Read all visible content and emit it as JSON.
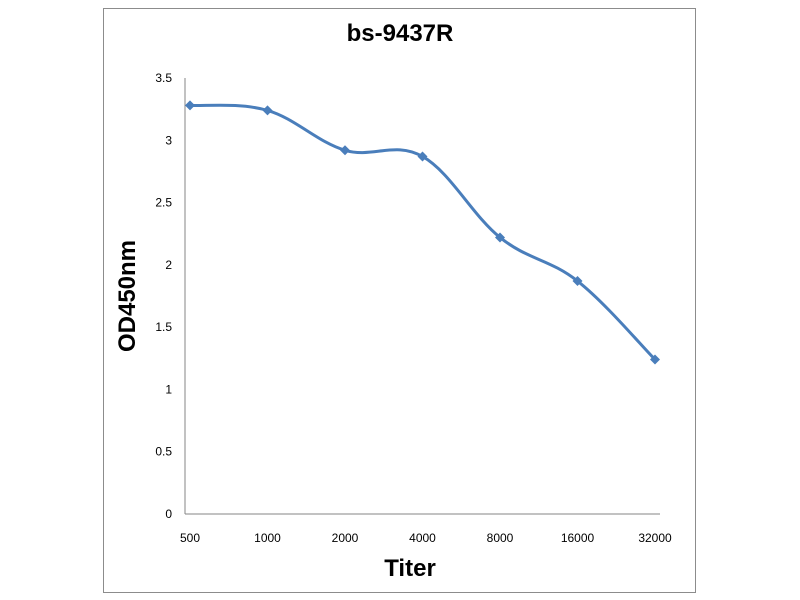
{
  "chart_data": {
    "type": "line",
    "title": "bs-9437R",
    "xlabel": "Titer",
    "ylabel": "OD450nm",
    "categories": [
      "500",
      "1000",
      "2000",
      "4000",
      "8000",
      "16000",
      "32000"
    ],
    "series": [
      {
        "values": [
          3.28,
          3.24,
          2.92,
          2.87,
          2.22,
          1.87,
          1.24
        ]
      }
    ],
    "yticks": [
      "0",
      "0.5",
      "1",
      "1.5",
      "2",
      "2.5",
      "3",
      "3.5"
    ],
    "ylim": [
      0,
      3.5
    ],
    "grid": false,
    "legend": "none",
    "colors": {
      "line": "#4a7ebb",
      "axis": "#868686"
    }
  }
}
